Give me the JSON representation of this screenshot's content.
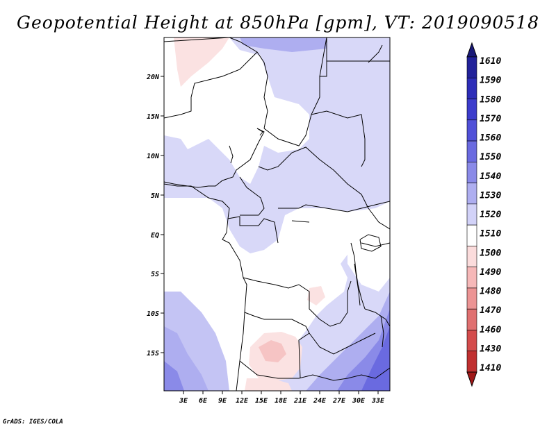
{
  "title": "Geopotential Height at 850hPa [gpm], VT: 2019090518",
  "credit": "GrADS: IGES/COLA",
  "lat_labels": [
    "20N",
    "15N",
    "10N",
    "5N",
    "EQ",
    "5S",
    "10S",
    "15S"
  ],
  "lon_labels": [
    "3E",
    "6E",
    "9E",
    "12E",
    "15E",
    "18E",
    "21E",
    "24E",
    "27E",
    "30E",
    "33E"
  ],
  "colorbar": {
    "levels": [
      "1610",
      "1590",
      "1580",
      "1570",
      "1560",
      "1550",
      "1540",
      "1530",
      "1520",
      "1510",
      "1500",
      "1490",
      "1480",
      "1470",
      "1460",
      "1430",
      "1410"
    ],
    "colors_top_to_bottom": [
      "#1a1a78",
      "#22229a",
      "#2d2db8",
      "#3c3ccc",
      "#5050d8",
      "#6a6ae0",
      "#8a8ae8",
      "#aeaef0",
      "#d2d2f8",
      "#ffffff",
      "#fbdcdc",
      "#f6b8b8",
      "#ec9494",
      "#e07070",
      "#d44c4c",
      "#c03030",
      "#a01818"
    ]
  },
  "map": {
    "variable": "Geopotential Height",
    "level": "850hPa",
    "units": "gpm",
    "valid_time": "2019090518",
    "lon_range": [
      "0E",
      "35E"
    ],
    "lat_range": [
      "20S",
      "25N"
    ]
  }
}
